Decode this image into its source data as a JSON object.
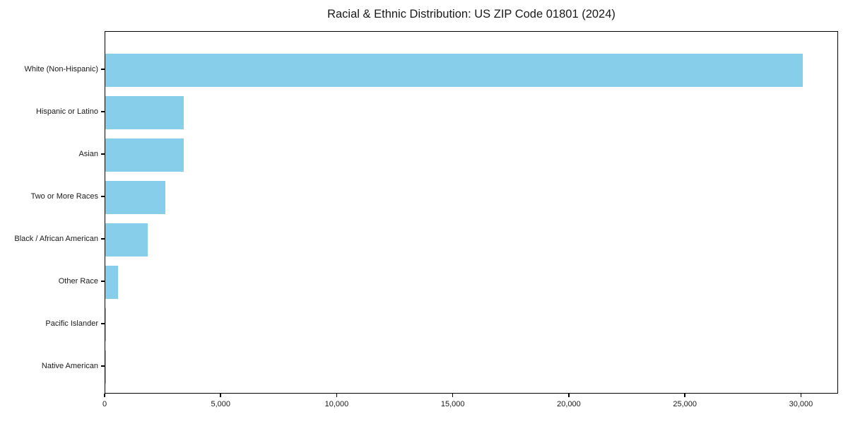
{
  "chart_data": {
    "type": "bar",
    "orientation": "horizontal",
    "title": "Racial & Ethnic Distribution: US ZIP Code 01801 (2024)",
    "categories": [
      "White (Non-Hispanic)",
      "Hispanic or Latino",
      "Asian",
      "Two or More Races",
      "Black / African American",
      "Other Race",
      "Pacific Islander",
      "Native American"
    ],
    "values": [
      30050,
      3390,
      3370,
      2600,
      1840,
      560,
      25,
      10
    ],
    "xlabel": "",
    "ylabel": "",
    "xlim": [
      0,
      31600
    ],
    "x_ticks": [
      {
        "value": 0,
        "label": "0"
      },
      {
        "value": 5000,
        "label": "5,000"
      },
      {
        "value": 10000,
        "label": "10,000"
      },
      {
        "value": 15000,
        "label": "15,000"
      },
      {
        "value": 20000,
        "label": "20,000"
      },
      {
        "value": 25000,
        "label": "25,000"
      },
      {
        "value": 30000,
        "label": "30,000"
      }
    ],
    "grid": false,
    "legend": null,
    "colors": {
      "bar": "#87CEEB",
      "axis": "#000000",
      "text": "#1a1a1a",
      "background": "#ffffff"
    }
  }
}
